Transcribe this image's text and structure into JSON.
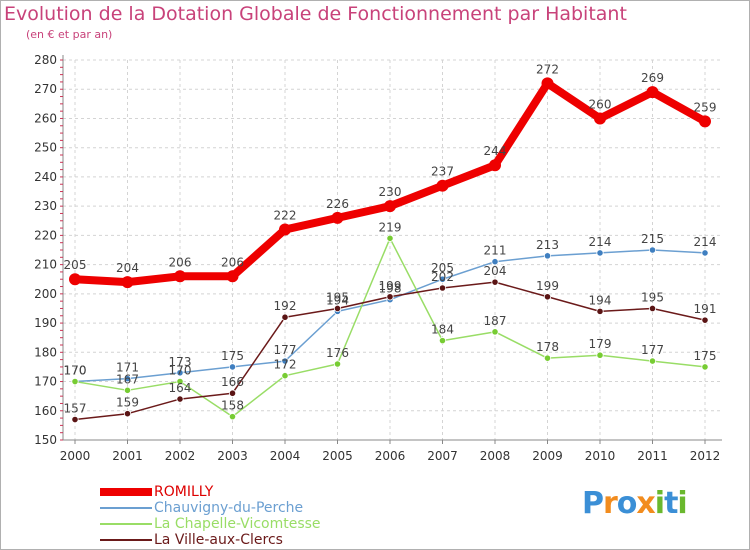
{
  "title": "Evolution de la Dotation Globale de Fonctionnement par Habitant",
  "subtitle": "(en € et par an)",
  "logo": {
    "text": "Proxiti",
    "letters": [
      "P",
      "r",
      "o",
      "x",
      "i",
      "t",
      "i"
    ],
    "colors": [
      "#3b8fd6",
      "#f28c1e",
      "#3b8fd6",
      "#f28c1e",
      "#6ab82e",
      "#3b8fd6",
      "#6ab82e"
    ]
  },
  "chart_data": {
    "type": "line",
    "title": "Evolution de la Dotation Globale de Fonctionnement par Habitant",
    "ylabel": "(en € et par an)",
    "xlabel": "",
    "ylim": [
      150,
      280
    ],
    "yticks": [
      150,
      160,
      170,
      180,
      190,
      200,
      210,
      220,
      230,
      240,
      250,
      260,
      270,
      280
    ],
    "categories": [
      "2000",
      "2001",
      "2002",
      "2003",
      "2004",
      "2005",
      "2006",
      "2007",
      "2008",
      "2009",
      "2010",
      "2011",
      "2012"
    ],
    "grid": true,
    "legend_position": "bottom-left",
    "series": [
      {
        "name": "ROMILLY",
        "color": "#ee0000",
        "marker": "#ee0000",
        "bold": true,
        "values": [
          205,
          204,
          206,
          206,
          222,
          226,
          230,
          237,
          244,
          272,
          260,
          269,
          259
        ]
      },
      {
        "name": "Chauvigny-du-Perche",
        "color": "#6b9fd1",
        "marker": "#3f7fc0",
        "bold": false,
        "values": [
          170,
          171,
          173,
          175,
          177,
          194,
          198,
          205,
          211,
          213,
          214,
          215,
          214
        ]
      },
      {
        "name": "La Chapelle-Vicomtesse",
        "color": "#99dd66",
        "marker": "#77cc33",
        "bold": false,
        "values": [
          170,
          167,
          170,
          158,
          172,
          176,
          219,
          184,
          187,
          178,
          179,
          177,
          175
        ]
      },
      {
        "name": "La Ville-aux-Clercs",
        "color": "#6b1a1a",
        "marker": "#5a1414",
        "bold": false,
        "values": [
          157,
          159,
          164,
          166,
          192,
          195,
          199,
          202,
          204,
          199,
          194,
          195,
          191
        ]
      }
    ]
  }
}
